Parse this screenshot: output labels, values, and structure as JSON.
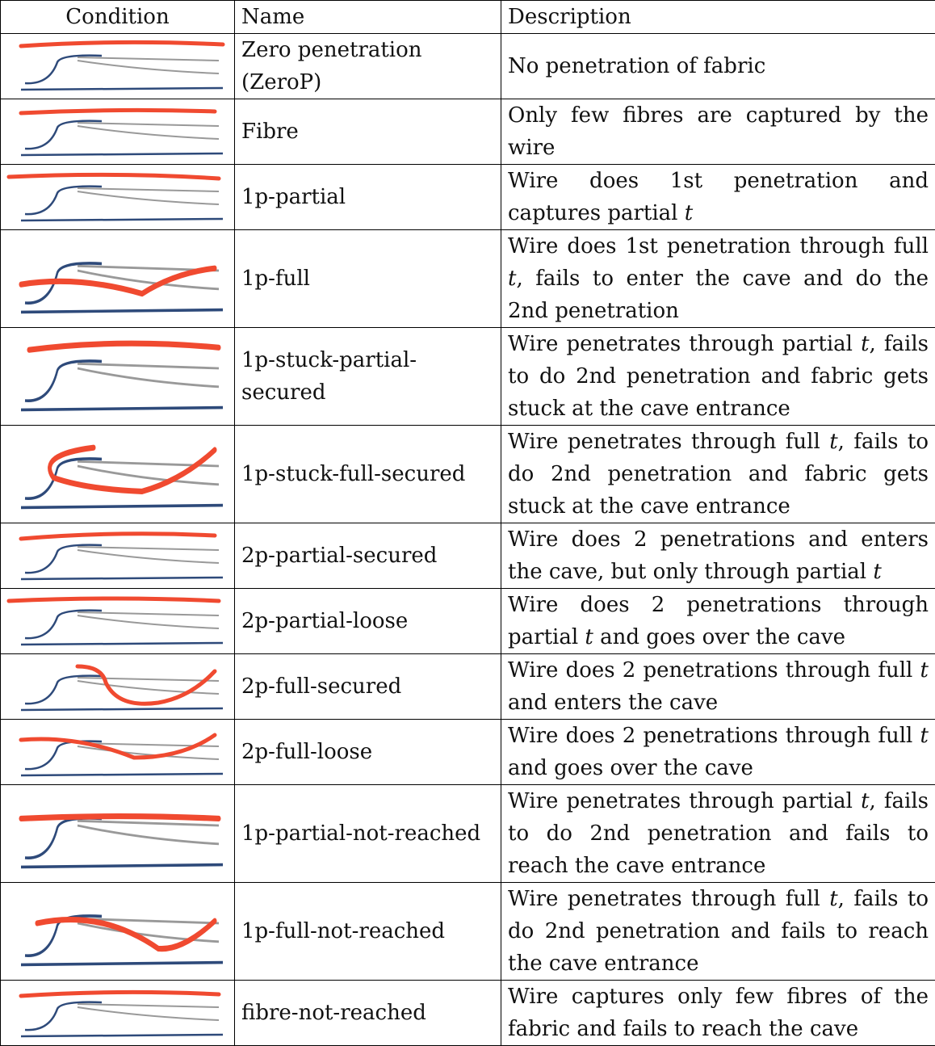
{
  "table": {
    "header": [
      "Condition",
      "Name",
      "Description"
    ],
    "rows": [
      {
        "name": "Zero penetration (ZeroP)",
        "description": [
          {
            "text": "No penetration of fabric"
          }
        ]
      },
      {
        "name": "Fibre",
        "description": [
          {
            "text": "Only few fibres are captured by the wire"
          }
        ]
      },
      {
        "name": "1p-partial",
        "description": [
          {
            "text": "Wire does 1st penetration and captures partial "
          },
          {
            "text": "t",
            "italic": true
          }
        ]
      },
      {
        "name": "1p-full",
        "description": [
          {
            "text": "Wire does 1st penetration through full "
          },
          {
            "text": "t",
            "italic": true
          },
          {
            "text": ", fails to enter the cave and do the 2nd penetration"
          }
        ]
      },
      {
        "name": "1p-stuck-partial-secured",
        "description": [
          {
            "text": "Wire penetrates through partial "
          },
          {
            "text": "t",
            "italic": true
          },
          {
            "text": ", fails to do 2nd penetration and fabric gets stuck at the cave entrance"
          }
        ]
      },
      {
        "name": "1p-stuck-full-secured",
        "description": [
          {
            "text": "Wire penetrates through full "
          },
          {
            "text": "t",
            "italic": true
          },
          {
            "text": ", fails to do 2nd penetration and fabric gets stuck at the cave entrance"
          }
        ]
      },
      {
        "name": "2p-partial-secured",
        "description": [
          {
            "text": "Wire does 2 penetrations and enters the cave, but only through partial "
          },
          {
            "text": "t",
            "italic": true
          }
        ]
      },
      {
        "name": "2p-partial-loose",
        "description": [
          {
            "text": "Wire does 2 penetrations through partial "
          },
          {
            "text": "t",
            "italic": true
          },
          {
            "text": " and goes over the cave"
          }
        ]
      },
      {
        "name": "2p-full-secured",
        "description": [
          {
            "text": "Wire does 2 penetrations through full "
          },
          {
            "text": "t",
            "italic": true
          },
          {
            "text": " and enters the cave"
          }
        ]
      },
      {
        "name": "2p-full-loose",
        "description": [
          {
            "text": "Wire does 2 penetrations through full "
          },
          {
            "text": "t",
            "italic": true
          },
          {
            "text": " and goes over the cave"
          }
        ]
      },
      {
        "name": "1p-partial-not-reached",
        "description": [
          {
            "text": "Wire penetrates through partial "
          },
          {
            "text": "t",
            "italic": true
          },
          {
            "text": ", fails to do 2nd penetration and fails to reach the cave entrance"
          }
        ]
      },
      {
        "name": "1p-full-not-reached",
        "description": [
          {
            "text": "Wire penetrates through full "
          },
          {
            "text": "t",
            "italic": true
          },
          {
            "text": ", fails to do 2nd penetration and fails to reach the cave entrance"
          }
        ]
      },
      {
        "name": "fibre-not-reached",
        "description": [
          {
            "text": "Wire captures only few fibres of the fabric and fails to reach the cave"
          }
        ]
      }
    ]
  }
}
